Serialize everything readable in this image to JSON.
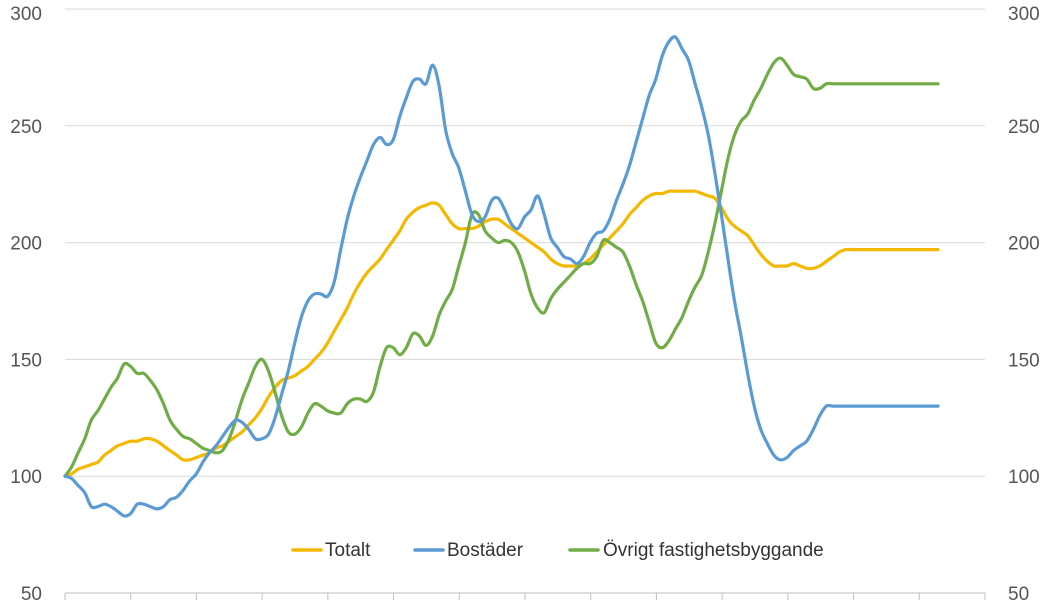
{
  "chart_data": {
    "type": "line",
    "title": "",
    "xlabel": "",
    "ylabel": "",
    "ylim": [
      50,
      300
    ],
    "yticks": [
      50,
      100,
      150,
      200,
      250,
      300
    ],
    "secondary_y": true,
    "grid": true,
    "legend_position": "bottom",
    "x": [
      0,
      1,
      2,
      3,
      4,
      5,
      6,
      7,
      8,
      9,
      10,
      11,
      12,
      13,
      14,
      15,
      16,
      17,
      18,
      19,
      20,
      21,
      22,
      23,
      24,
      25,
      26,
      27,
      28,
      29,
      30,
      31,
      32,
      33,
      34,
      35,
      36,
      37,
      38,
      39,
      40,
      41,
      42,
      43,
      44,
      45,
      46,
      47,
      48,
      49,
      50,
      51,
      52,
      53,
      54,
      55,
      56,
      57,
      58,
      59,
      60,
      61,
      62,
      63,
      64,
      65,
      66,
      67,
      68,
      69,
      70,
      71,
      72,
      73,
      74,
      75,
      76,
      77,
      78,
      79,
      80,
      81,
      82,
      83,
      84,
      85,
      86,
      87,
      88,
      89,
      90,
      91,
      92,
      93,
      94,
      95,
      96,
      97,
      98,
      99,
      100,
      101,
      102,
      103,
      104,
      105,
      106,
      107,
      108,
      109,
      110,
      111,
      112,
      113,
      114,
      115,
      116,
      117,
      118,
      119,
      120,
      121,
      122,
      123,
      124,
      125,
      126,
      127,
      128,
      129,
      130,
      131,
      132,
      133
    ],
    "series": [
      {
        "name": "Totalt",
        "color": "#f5b800",
        "values": [
          100,
          101,
          103,
          104,
          105,
          106,
          109,
          111,
          113,
          114,
          115,
          115,
          116,
          116,
          115,
          113,
          111,
          109,
          107,
          107,
          108,
          109,
          110,
          112,
          113,
          115,
          117,
          119,
          122,
          125,
          129,
          134,
          138,
          141,
          142,
          143,
          145,
          147,
          150,
          153,
          157,
          162,
          167,
          172,
          178,
          183,
          187,
          190,
          193,
          197,
          201,
          205,
          210,
          213,
          215,
          216,
          217,
          216,
          212,
          208,
          206,
          206,
          206,
          207,
          209,
          210,
          210,
          208,
          206,
          204,
          202,
          200,
          198,
          196,
          193,
          191,
          190,
          190,
          190,
          191,
          193,
          196,
          199,
          202,
          205,
          208,
          212,
          215,
          218,
          220,
          221,
          221,
          222,
          222,
          222,
          222,
          222,
          221,
          220,
          219,
          215,
          210,
          207,
          205,
          203,
          199,
          195,
          192,
          190,
          190,
          190,
          191,
          190,
          189,
          189,
          190,
          192,
          194,
          196,
          197,
          197,
          197,
          197,
          197,
          197,
          197,
          197,
          197,
          197,
          197,
          197,
          197,
          197,
          197
        ]
      },
      {
        "name": "Bostäder",
        "color": "#5b9bd5",
        "values": [
          100,
          99,
          96,
          93,
          87,
          87,
          88,
          87,
          85,
          83,
          84,
          88,
          88,
          87,
          86,
          87,
          90,
          91,
          94,
          98,
          101,
          106,
          110,
          113,
          117,
          121,
          124,
          123,
          120,
          116,
          116,
          118,
          125,
          135,
          145,
          157,
          168,
          175,
          178,
          178,
          177,
          183,
          197,
          210,
          220,
          228,
          235,
          242,
          245,
          242,
          244,
          254,
          262,
          269,
          270,
          268,
          276,
          267,
          248,
          238,
          232,
          222,
          212,
          209,
          211,
          218,
          219,
          214,
          208,
          206,
          211,
          214,
          220,
          212,
          202,
          198,
          194,
          193,
          191,
          194,
          200,
          204,
          205,
          210,
          218,
          225,
          233,
          243,
          253,
          263,
          270,
          280,
          286,
          288,
          283,
          278,
          268,
          258,
          246,
          230,
          212,
          193,
          175,
          160,
          144,
          130,
          120,
          114,
          109,
          107,
          108,
          111,
          113,
          115,
          120,
          126,
          130,
          130,
          130,
          130,
          130,
          130,
          130,
          130,
          130,
          130,
          130,
          130,
          130,
          130,
          130,
          130,
          130,
          130
        ]
      },
      {
        "name": "Övrigt fastighetsbyggande",
        "color": "#70ad47",
        "values": [
          100,
          104,
          110,
          116,
          124,
          128,
          133,
          138,
          142,
          148,
          147,
          144,
          144,
          141,
          137,
          131,
          124,
          120,
          117,
          116,
          114,
          112,
          111,
          110,
          111,
          116,
          124,
          133,
          140,
          147,
          150,
          145,
          136,
          126,
          119,
          118,
          121,
          127,
          131,
          130,
          128,
          127,
          127,
          131,
          133,
          133,
          132,
          136,
          147,
          155,
          155,
          152,
          155,
          161,
          160,
          156,
          160,
          169,
          175,
          180,
          190,
          200,
          212,
          212,
          205,
          202,
          200,
          201,
          200,
          196,
          188,
          178,
          172,
          170,
          176,
          180,
          183,
          186,
          189,
          191,
          191,
          194,
          201,
          200,
          198,
          196,
          190,
          182,
          175,
          166,
          157,
          155,
          158,
          163,
          168,
          175,
          181,
          186,
          196,
          208,
          222,
          236,
          246,
          252,
          255,
          261,
          266,
          272,
          277,
          279,
          276,
          272,
          271,
          270,
          266,
          266,
          268,
          268,
          268,
          268,
          268,
          268,
          268,
          268,
          268,
          268,
          268,
          268,
          268,
          268,
          268,
          268,
          268,
          268
        ]
      }
    ]
  }
}
